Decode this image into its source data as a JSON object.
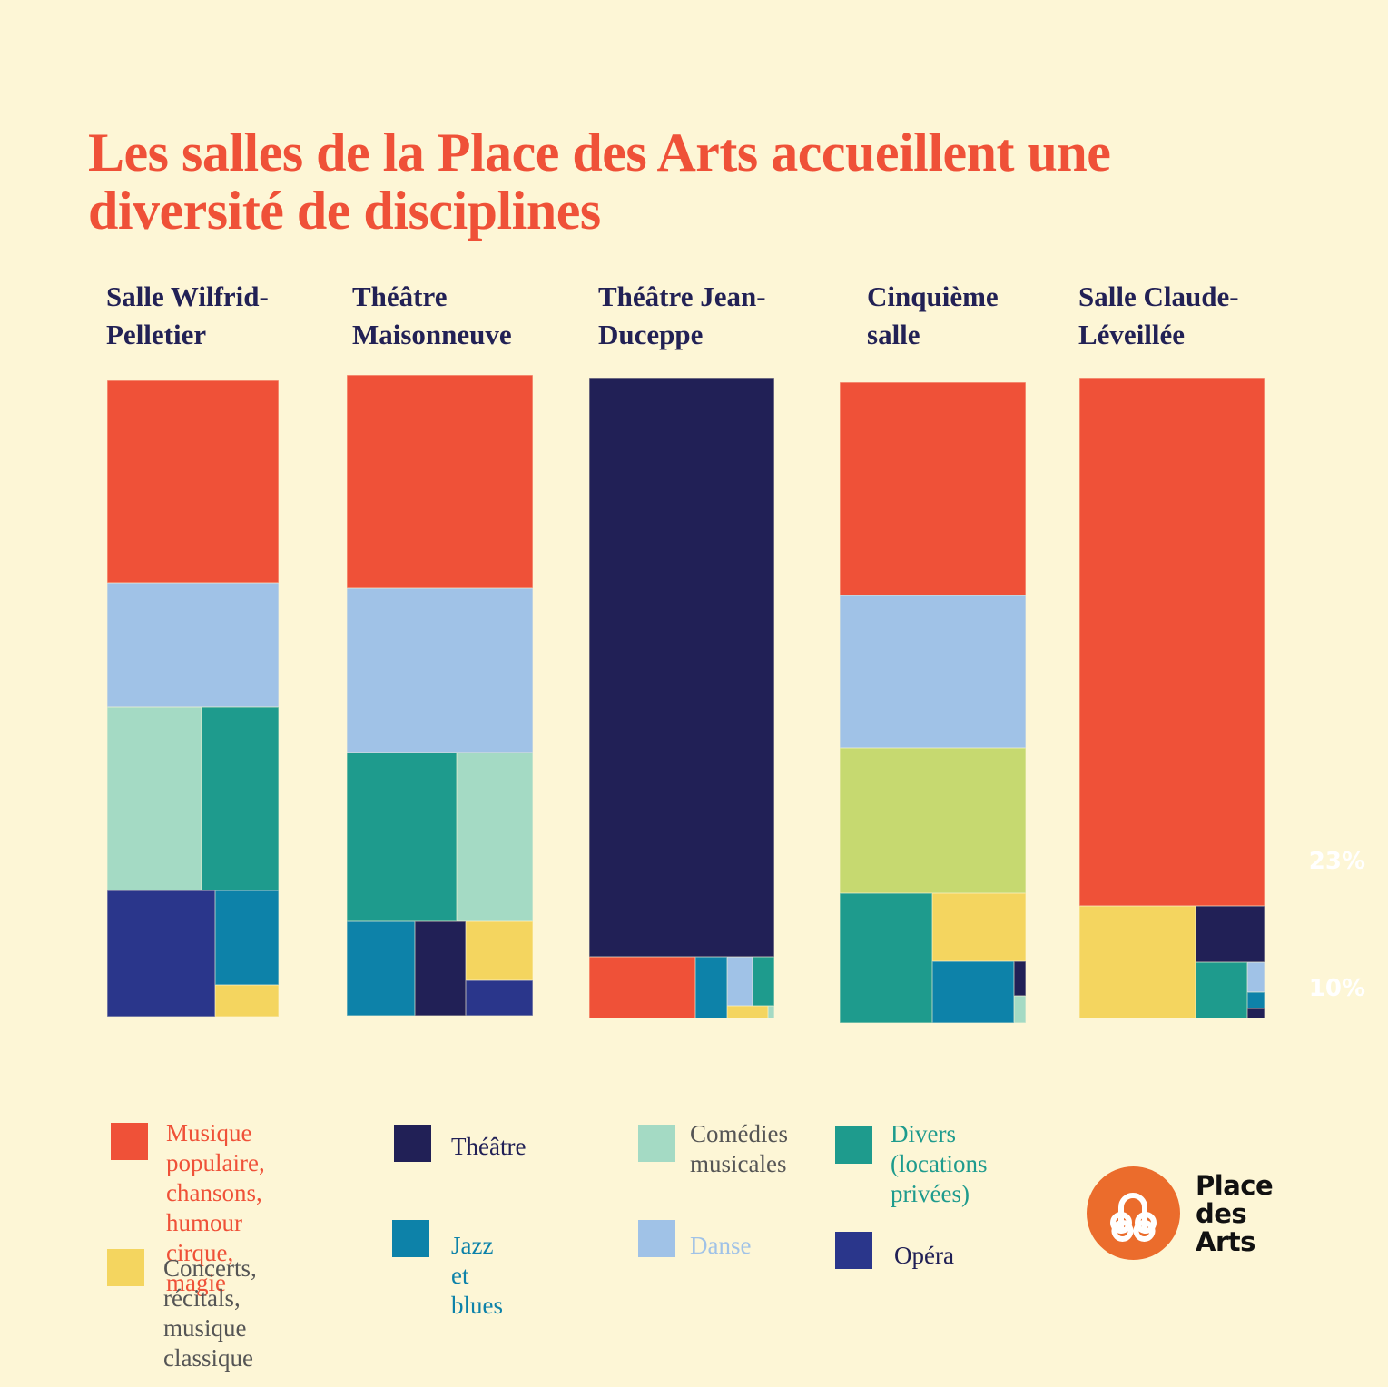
{
  "title": "Les salles de la Place des Arts accueillent une diversité de disciplines",
  "categories": {
    "pop": {
      "label": "Musique populaire, chansons, humour cirque, magie",
      "color": "#ef5138",
      "text_color": "#ef5138"
    },
    "concerts": {
      "label": "Concerts, récitals, musique classique",
      "color": "#f4d55f",
      "text_color": "#555555"
    },
    "theatre": {
      "label": "Théâtre",
      "color": "#212056",
      "text_color": "#212056"
    },
    "jazz": {
      "label": "Jazz et blues",
      "color": "#0d82a9",
      "text_color": "#0d82a9"
    },
    "comedies": {
      "label": "Comédies musicales",
      "color": "#a4dac4",
      "text_color": "#555555"
    },
    "danse": {
      "label": "Danse",
      "color": "#a0c2e7",
      "text_color": "#a0c2e7"
    },
    "divers": {
      "label": "Divers (locations privées)",
      "color": "#1e9b8d",
      "text_color": "#1e9b8d"
    },
    "opera": {
      "label": "Opéra",
      "color": "#2a368b",
      "text_color": "#212056"
    },
    "unlabeled": {
      "label": "",
      "color": "#c6d970",
      "text_color": ""
    }
  },
  "legend": [
    {
      "key": "pop",
      "text": "Musique\npopulaire,\nchansons, humour\ncirque, magie"
    },
    {
      "key": "concerts",
      "text": "Concerts, récitals,\nmusique classique"
    },
    {
      "key": "theatre",
      "text": "Théâtre"
    },
    {
      "key": "jazz",
      "text": "Jazz et blues"
    },
    {
      "key": "comedies",
      "text": "Comédies\nmusicales"
    },
    {
      "key": "danse",
      "text": "Danse"
    },
    {
      "key": "divers",
      "text": "Divers\n(locations\nprivées)"
    },
    {
      "key": "opera",
      "text": "Opéra"
    }
  ],
  "side_labels": [
    "23%",
    "10%"
  ],
  "logo": {
    "text": "Place\ndes\nArts",
    "color": "#eb6c2c"
  },
  "chart_data": {
    "type": "treemap",
    "title": "Les salles de la Place des Arts accueillent une diversité de disciplines",
    "unit": "approx. % of venue programming (estimated from tile areas)",
    "venues": [
      {
        "name": "Salle Wilfrid-Pelletier",
        "label": "Salle Wilfrid-\nPelletier",
        "tiles": [
          {
            "cat": "pop",
            "share": 32
          },
          {
            "cat": "danse",
            "share": 20
          },
          {
            "cat": "comedies",
            "share": 16
          },
          {
            "cat": "divers",
            "share": 13
          },
          {
            "cat": "opera",
            "share": 12
          },
          {
            "cat": "jazz",
            "share": 5
          },
          {
            "cat": "concerts",
            "share": 2
          }
        ]
      },
      {
        "name": "Théâtre Maisonneuve",
        "label": "Théâtre\nMaisonneuve",
        "tiles": [
          {
            "cat": "pop",
            "share": 33
          },
          {
            "cat": "danse",
            "share": 26
          },
          {
            "cat": "divers",
            "share": 16
          },
          {
            "cat": "comedies",
            "share": 11
          },
          {
            "cat": "jazz",
            "share": 5
          },
          {
            "cat": "theatre",
            "share": 4
          },
          {
            "cat": "concerts",
            "share": 3
          },
          {
            "cat": "opera",
            "share": 2
          }
        ]
      },
      {
        "name": "Théâtre Jean-Duceppe",
        "label": "Théâtre Jean-\nDuceppe",
        "tiles": [
          {
            "cat": "theatre",
            "share": 90
          },
          {
            "cat": "pop",
            "share": 6
          },
          {
            "cat": "jazz",
            "share": 2
          },
          {
            "cat": "danse",
            "share": 1
          },
          {
            "cat": "divers",
            "share": 0.7
          },
          {
            "cat": "concerts",
            "share": 0.4
          },
          {
            "cat": "comedies",
            "share": 0.1
          }
        ]
      },
      {
        "name": "Cinquième salle",
        "label": "Cinquième\nsalle",
        "tiles": [
          {
            "cat": "pop",
            "share": 33
          },
          {
            "cat": "danse",
            "share": 24
          },
          {
            "cat": "unlabeled",
            "share": 23
          },
          {
            "cat": "divers",
            "share": 10
          },
          {
            "cat": "concerts",
            "share": 5
          },
          {
            "cat": "jazz",
            "share": 4
          },
          {
            "cat": "theatre",
            "share": 0.5
          },
          {
            "cat": "comedies",
            "share": 0.5
          }
        ]
      },
      {
        "name": "Salle Claude-Léveillée",
        "label": "Salle Claude-\nLéveillée",
        "tiles": [
          {
            "cat": "pop",
            "share": 82
          },
          {
            "cat": "concerts",
            "share": 11
          },
          {
            "cat": "theatre",
            "share": 3
          },
          {
            "cat": "divers",
            "share": 3
          },
          {
            "cat": "danse",
            "share": 0.4
          },
          {
            "cat": "jazz",
            "share": 0.3
          },
          {
            "cat": "theatre",
            "share": 0.2
          }
        ]
      }
    ]
  }
}
